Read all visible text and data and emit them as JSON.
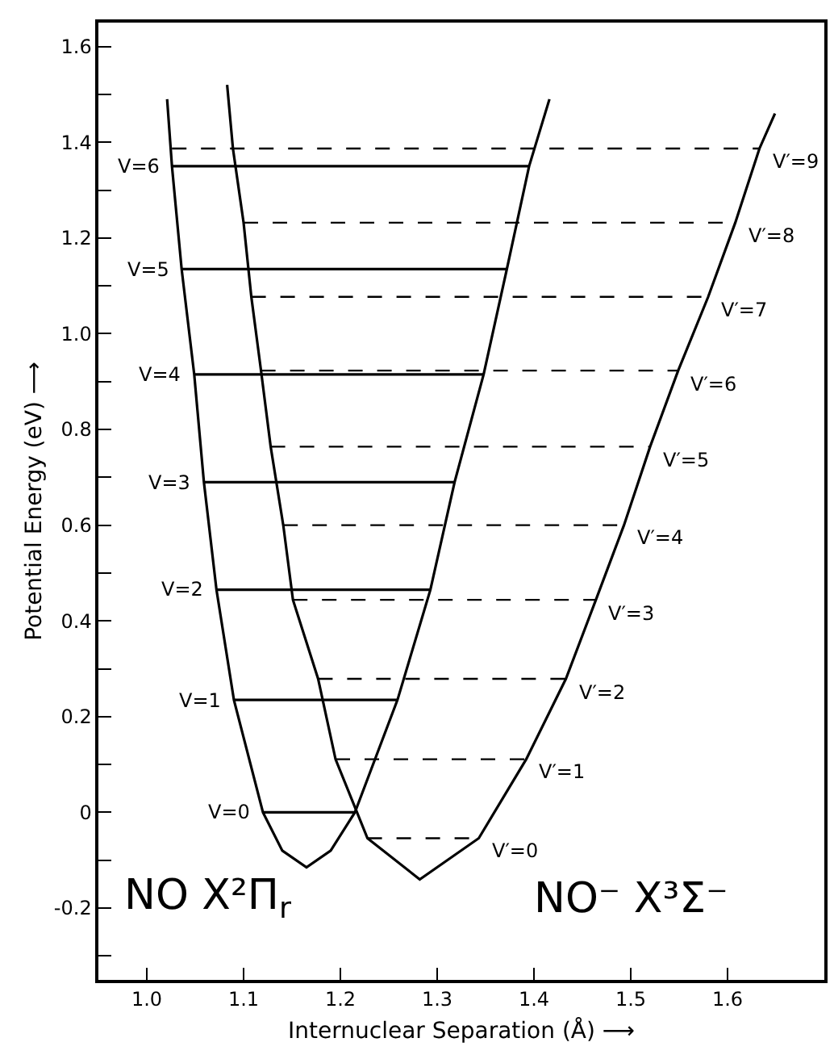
{
  "chart_data": {
    "type": "line",
    "xlabel": "Internuclear Separation (Å) ⟶",
    "ylabel": "Potential Energy (eV) ⟶",
    "xlim": [
      0.95,
      1.7
    ],
    "ylim": [
      -0.35,
      1.65
    ],
    "xticks": [
      {
        "value": 1.0,
        "label": "1.0"
      },
      1.1,
      1.2,
      1.3,
      1.4,
      1.5,
      1.6
    ],
    "yticks": [
      {
        "value": -0.3,
        "label": null
      },
      -0.2,
      {
        "value": -0.1,
        "label": null
      },
      0,
      {
        "value": 0.1,
        "label": null
      },
      0.2,
      {
        "value": 0.3,
        "label": null
      },
      0.4,
      {
        "value": 0.5,
        "label": null
      },
      0.6,
      {
        "value": 0.7,
        "label": null
      },
      0.8,
      {
        "value": 0.9,
        "label": null
      },
      {
        "value": 1.0,
        "label": "1.0"
      },
      {
        "value": 1.1,
        "label": null
      },
      1.2,
      {
        "value": 1.3,
        "label": null
      },
      1.4,
      {
        "value": 1.5,
        "label": null
      },
      1.6
    ],
    "marker": "none",
    "series": [
      {
        "color": "#000000",
        "line_style": "solid",
        "x": [
          1.021,
          1.026,
          1.036,
          1.049,
          1.059,
          1.072,
          1.09,
          1.12,
          1.14,
          1.165,
          1.19,
          1.215,
          1.259,
          1.293,
          1.318,
          1.348,
          1.372,
          1.395,
          1.416
        ],
        "values": [
          1.49,
          1.35,
          1.135,
          0.915,
          0.69,
          0.465,
          0.235,
          0.0,
          -0.08,
          -0.115,
          -0.08,
          0.0,
          0.235,
          0.465,
          0.69,
          0.915,
          1.135,
          1.35,
          1.49
        ]
      },
      {
        "color": "#000000",
        "line_style": "solid",
        "x": [
          1.083,
          1.089,
          1.1,
          1.108,
          1.118,
          1.128,
          1.141,
          1.151,
          1.177,
          1.195,
          1.228,
          1.282,
          1.343,
          1.392,
          1.433,
          1.464,
          1.493,
          1.52,
          1.549,
          1.58,
          1.608,
          1.633,
          1.649
        ],
        "values": [
          1.52,
          1.387,
          1.232,
          1.077,
          0.923,
          0.764,
          0.6,
          0.444,
          0.279,
          0.111,
          -0.054,
          -0.14,
          -0.054,
          0.111,
          0.279,
          0.444,
          0.6,
          0.764,
          0.923,
          1.077,
          1.232,
          1.387,
          1.46
        ]
      },
      {
        "color": "#000000",
        "line_style": "solid",
        "x": [
          1.12,
          1.215
        ],
        "values": [
          0.0,
          0.0
        ]
      },
      {
        "color": "#000000",
        "line_style": "solid",
        "x": [
          1.09,
          1.259
        ],
        "values": [
          0.235,
          0.235
        ]
      },
      {
        "color": "#000000",
        "line_style": "solid",
        "x": [
          1.072,
          1.293
        ],
        "values": [
          0.465,
          0.465
        ]
      },
      {
        "color": "#000000",
        "line_style": "solid",
        "x": [
          1.059,
          1.318
        ],
        "values": [
          0.69,
          0.69
        ]
      },
      {
        "color": "#000000",
        "line_style": "solid",
        "x": [
          1.049,
          1.348
        ],
        "values": [
          0.915,
          0.915
        ]
      },
      {
        "color": "#000000",
        "line_style": "solid",
        "x": [
          1.036,
          1.372
        ],
        "values": [
          1.135,
          1.135
        ]
      },
      {
        "color": "#000000",
        "line_style": "solid",
        "x": [
          1.026,
          1.395
        ],
        "values": [
          1.35,
          1.35
        ]
      },
      {
        "color": "#000000",
        "line_style": "dashed",
        "x": [
          1.228,
          1.343
        ],
        "values": [
          -0.054,
          -0.054
        ]
      },
      {
        "color": "#000000",
        "line_style": "dashed",
        "x": [
          1.195,
          1.392
        ],
        "values": [
          0.111,
          0.111
        ]
      },
      {
        "color": "#000000",
        "line_style": "dashed",
        "x": [
          1.177,
          1.433
        ],
        "values": [
          0.279,
          0.279
        ]
      },
      {
        "color": "#000000",
        "line_style": "dashed",
        "x": [
          1.151,
          1.464
        ],
        "values": [
          0.444,
          0.444
        ]
      },
      {
        "color": "#000000",
        "line_style": "dashed",
        "x": [
          1.141,
          1.493
        ],
        "values": [
          0.6,
          0.6
        ]
      },
      {
        "color": "#000000",
        "line_style": "dashed",
        "x": [
          1.128,
          1.52
        ],
        "values": [
          0.764,
          0.764
        ]
      },
      {
        "color": "#000000",
        "line_style": "dashed",
        "x": [
          1.118,
          1.549
        ],
        "values": [
          0.923,
          0.923
        ]
      },
      {
        "color": "#000000",
        "line_style": "dashed",
        "x": [
          1.108,
          1.58
        ],
        "values": [
          1.077,
          1.077
        ]
      },
      {
        "color": "#000000",
        "line_style": "dashed",
        "x": [
          1.1,
          1.608
        ],
        "values": [
          1.232,
          1.232
        ]
      },
      {
        "color": "#000000",
        "line_style": "dashed",
        "x": [
          1.026,
          1.633
        ],
        "values": [
          1.387,
          1.387
        ]
      }
    ],
    "annotations": [
      {
        "text": "V=0",
        "x": 1.12,
        "y": 0.0
      },
      {
        "text": "V=1",
        "x": 1.09,
        "y": 0.235
      },
      {
        "text": "V=2",
        "x": 1.072,
        "y": 0.465
      },
      {
        "text": "V=3",
        "x": 1.059,
        "y": 0.69
      },
      {
        "text": "V=4",
        "x": 1.049,
        "y": 0.915
      },
      {
        "text": "V=5",
        "x": 1.036,
        "y": 1.135
      },
      {
        "text": "V=6",
        "x": 1.026,
        "y": 1.35
      },
      {
        "text": "V′=0",
        "x": 1.343,
        "y": -0.054
      },
      {
        "text": "V′=1",
        "x": 1.392,
        "y": 0.111
      },
      {
        "text": "V′=2",
        "x": 1.433,
        "y": 0.279
      },
      {
        "text": "V′=3",
        "x": 1.464,
        "y": 0.444
      },
      {
        "text": "V′=4",
        "x": 1.493,
        "y": 0.6
      },
      {
        "text": "V′=5",
        "x": 1.52,
        "y": 0.764
      },
      {
        "text": "V′=6",
        "x": 1.549,
        "y": 0.923
      },
      {
        "text": "V′=7",
        "x": 1.58,
        "y": 1.077
      },
      {
        "text": "V′=8",
        "x": 1.608,
        "y": 1.232
      },
      {
        "text": "V′=9",
        "x": 1.633,
        "y": 1.387
      },
      "NO X²Π$_{r}$",
      "NO⁻ X³Σ⁻"
    ]
  }
}
